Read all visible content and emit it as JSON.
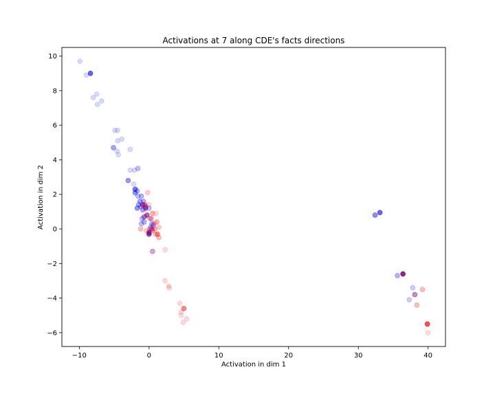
{
  "chart_data": {
    "type": "scatter",
    "title": "Activations at 7 along CDE's facts directions",
    "xlabel": "Activation in dim 1",
    "ylabel": "Activation in dim 2",
    "xlim": [
      -12.5,
      42.5
    ],
    "ylim": [
      -6.8,
      10.5
    ],
    "xticks": [
      -10,
      0,
      10,
      20,
      30,
      40
    ],
    "yticks": [
      -6,
      -4,
      -2,
      0,
      2,
      4,
      6,
      8,
      10
    ],
    "grid": false,
    "legend": "none",
    "colors": {
      "blue": "#0000ff",
      "red": "#ff0000",
      "purple": "#800080"
    },
    "series": [
      {
        "color": "blue",
        "points": [
          {
            "x": -9.9,
            "y": 9.7,
            "a": 0.15
          },
          {
            "x": -9.0,
            "y": 8.9,
            "a": 0.15
          },
          {
            "x": -8.4,
            "y": 9.0,
            "a": 0.6
          },
          {
            "x": -8.0,
            "y": 7.6,
            "a": 0.15
          },
          {
            "x": -7.5,
            "y": 7.8,
            "a": 0.15
          },
          {
            "x": -7.4,
            "y": 7.2,
            "a": 0.15
          },
          {
            "x": -6.8,
            "y": 7.4,
            "a": 0.15
          },
          {
            "x": -4.9,
            "y": 5.7,
            "a": 0.15
          },
          {
            "x": -4.5,
            "y": 5.7,
            "a": 0.15
          },
          {
            "x": -4.5,
            "y": 5.1,
            "a": 0.15
          },
          {
            "x": -3.9,
            "y": 5.2,
            "a": 0.15
          },
          {
            "x": -5.1,
            "y": 4.7,
            "a": 0.35
          },
          {
            "x": -4.6,
            "y": 4.5,
            "a": 0.15
          },
          {
            "x": -4.4,
            "y": 4.3,
            "a": 0.15
          },
          {
            "x": -2.7,
            "y": 4.6,
            "a": 0.15
          },
          {
            "x": -2.7,
            "y": 3.4,
            "a": 0.15
          },
          {
            "x": -2.1,
            "y": 3.4,
            "a": 0.15
          },
          {
            "x": -1.6,
            "y": 3.5,
            "a": 0.25
          },
          {
            "x": -3.0,
            "y": 2.8,
            "a": 0.4
          },
          {
            "x": -2.2,
            "y": 2.6,
            "a": 0.15
          },
          {
            "x": -2.0,
            "y": 2.3,
            "a": 0.5
          },
          {
            "x": -1.7,
            "y": 2.2,
            "a": 0.3
          },
          {
            "x": -2.0,
            "y": 2.1,
            "a": 0.4
          },
          {
            "x": -1.6,
            "y": 1.9,
            "a": 0.25
          },
          {
            "x": -1.1,
            "y": 1.9,
            "a": 0.3
          },
          {
            "x": -1.3,
            "y": 1.6,
            "a": 0.35
          },
          {
            "x": -0.8,
            "y": 1.6,
            "a": 0.3
          },
          {
            "x": -1.5,
            "y": 1.4,
            "a": 0.3
          },
          {
            "x": -1.7,
            "y": 1.2,
            "a": 0.4
          },
          {
            "x": -1.2,
            "y": 1.3,
            "a": 0.3
          },
          {
            "x": -0.9,
            "y": 1.1,
            "a": 0.35
          },
          {
            "x": -0.5,
            "y": 1.3,
            "a": 0.3
          },
          {
            "x": 0.0,
            "y": 1.2,
            "a": 0.25
          },
          {
            "x": -1.0,
            "y": 0.6,
            "a": 0.25
          },
          {
            "x": -0.7,
            "y": 0.4,
            "a": 0.3
          },
          {
            "x": -1.1,
            "y": 0.3,
            "a": 0.25
          },
          {
            "x": 0.1,
            "y": 0.6,
            "a": 0.2
          },
          {
            "x": 0.4,
            "y": 0.3,
            "a": 0.3
          },
          {
            "x": 0.6,
            "y": 0.2,
            "a": 0.3
          },
          {
            "x": 0.2,
            "y": 0.1,
            "a": 0.25
          },
          {
            "x": 32.4,
            "y": 0.8,
            "a": 0.45
          },
          {
            "x": 33.1,
            "y": 0.95,
            "a": 0.6
          },
          {
            "x": 35.6,
            "y": -2.7,
            "a": 0.3
          },
          {
            "x": 37.8,
            "y": -3.4,
            "a": 0.2
          },
          {
            "x": 37.3,
            "y": -4.1,
            "a": 0.2
          }
        ]
      },
      {
        "color": "red",
        "points": [
          {
            "x": -0.6,
            "y": 1.4,
            "a": 0.4
          },
          {
            "x": -0.2,
            "y": 2.1,
            "a": 0.2
          },
          {
            "x": 0.0,
            "y": 1.4,
            "a": 0.15
          },
          {
            "x": 1.0,
            "y": 0.9,
            "a": 0.15
          },
          {
            "x": 0.5,
            "y": 0.9,
            "a": 0.3
          },
          {
            "x": 0.3,
            "y": 0.6,
            "a": 0.35
          },
          {
            "x": 0.7,
            "y": 0.3,
            "a": 0.25
          },
          {
            "x": 1.1,
            "y": 0.4,
            "a": 0.3
          },
          {
            "x": 0.8,
            "y": 0.0,
            "a": 0.3
          },
          {
            "x": 1.4,
            "y": 0.1,
            "a": 0.2
          },
          {
            "x": 1.2,
            "y": -0.3,
            "a": 0.45
          },
          {
            "x": 1.4,
            "y": -0.5,
            "a": 0.25
          },
          {
            "x": 0.5,
            "y": -0.1,
            "a": 0.3
          },
          {
            "x": 0.9,
            "y": -0.3,
            "a": 0.2
          },
          {
            "x": -1.2,
            "y": 0.0,
            "a": 0.25
          },
          {
            "x": -0.4,
            "y": -0.1,
            "a": 0.2
          },
          {
            "x": 0.1,
            "y": 0.0,
            "a": 0.3
          },
          {
            "x": 2.3,
            "y": -1.2,
            "a": 0.15
          },
          {
            "x": 2.3,
            "y": -3.0,
            "a": 0.15
          },
          {
            "x": 2.8,
            "y": -3.3,
            "a": 0.15
          },
          {
            "x": 2.9,
            "y": -3.4,
            "a": 0.15
          },
          {
            "x": 4.4,
            "y": -4.3,
            "a": 0.15
          },
          {
            "x": 4.6,
            "y": -4.8,
            "a": 0.15
          },
          {
            "x": 4.6,
            "y": -5.0,
            "a": 0.15
          },
          {
            "x": 5.0,
            "y": -4.6,
            "a": 0.45
          },
          {
            "x": 5.4,
            "y": -5.2,
            "a": 0.15
          },
          {
            "x": 4.9,
            "y": -5.4,
            "a": 0.15
          },
          {
            "x": 38.4,
            "y": -4.4,
            "a": 0.25
          },
          {
            "x": 39.2,
            "y": -3.5,
            "a": 0.25
          },
          {
            "x": 40.0,
            "y": -6.0,
            "a": 0.15
          },
          {
            "x": 39.9,
            "y": -5.5,
            "a": 0.7
          }
        ]
      },
      {
        "color": "purple",
        "points": [
          {
            "x": -0.9,
            "y": 1.4,
            "a": 0.6
          },
          {
            "x": -0.5,
            "y": 1.2,
            "a": 0.6
          },
          {
            "x": -0.3,
            "y": 0.8,
            "a": 0.6
          },
          {
            "x": -0.7,
            "y": 0.7,
            "a": 0.5
          },
          {
            "x": 0.0,
            "y": -0.2,
            "a": 0.7
          },
          {
            "x": 0.0,
            "y": -0.3,
            "a": 0.7
          },
          {
            "x": 0.4,
            "y": 0.0,
            "a": 0.4
          },
          {
            "x": 0.5,
            "y": -1.3,
            "a": 0.35
          },
          {
            "x": 36.4,
            "y": -2.6,
            "a": 0.85
          },
          {
            "x": 38.1,
            "y": -3.8,
            "a": 0.45
          }
        ]
      }
    ]
  }
}
